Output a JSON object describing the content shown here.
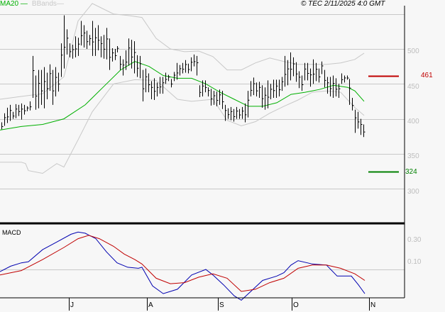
{
  "header": {
    "legend_ma": "MA20",
    "legend_bb": "BBands",
    "copyright": "© TEC 2/11/2025 4:0 GMT"
  },
  "colors": {
    "background": "#f7f7f7",
    "grid": "#c8c8c8",
    "bars": "#000000",
    "ma20": "#00b000",
    "bbands": "#c8c8c8",
    "resistance": "#c00000",
    "support": "#008000",
    "macd": "#0000b0",
    "signal": "#c00000"
  },
  "levels": {
    "resistance": {
      "label": "461",
      "value": 461
    },
    "support": {
      "label": "324",
      "value": 324
    }
  },
  "macd_panel": {
    "title": "MACD"
  },
  "chart_data": [
    {
      "type": "bar",
      "subtype": "ohlc",
      "title": "",
      "ylabel": "Price",
      "ylim": [
        270,
        555
      ],
      "yticks": [
        300,
        350,
        400,
        450,
        500
      ],
      "ytick_labels": [
        "300",
        "350",
        "400",
        "450",
        "500"
      ],
      "grid": true,
      "xticks": [
        "J",
        "A",
        "S",
        "O",
        "N"
      ],
      "legend": [
        "MA20",
        "BBands"
      ],
      "annotations": [
        {
          "text": "461",
          "value": 461,
          "color": "#c00000",
          "kind": "resistance"
        },
        {
          "text": "324",
          "value": 324,
          "color": "#008000",
          "kind": "support"
        },
        {
          "text": "© TEC 2/11/2025 4:0 GMT"
        }
      ],
      "bars_hl": [
        [
          395,
          385
        ],
        [
          408,
          390
        ],
        [
          416,
          394
        ],
        [
          420,
          397
        ],
        [
          410,
          400
        ],
        [
          421,
          401
        ],
        [
          420,
          404
        ],
        [
          422,
          399
        ],
        [
          420,
          406
        ],
        [
          418,
          411
        ],
        [
          425,
          412
        ],
        [
          490,
          430
        ],
        [
          462,
          413
        ],
        [
          470,
          415
        ],
        [
          470,
          420
        ],
        [
          474,
          415
        ],
        [
          466,
          428
        ],
        [
          478,
          440
        ],
        [
          470,
          420
        ],
        [
          474,
          432
        ],
        [
          466,
          439
        ],
        [
          508,
          460
        ],
        [
          548,
          472
        ],
        [
          528,
          492
        ],
        [
          508,
          488
        ],
        [
          506,
          486
        ],
        [
          518,
          488
        ],
        [
          516,
          490
        ],
        [
          540,
          505
        ],
        [
          534,
          502
        ],
        [
          526,
          500
        ],
        [
          520,
          505
        ],
        [
          540,
          490
        ],
        [
          530,
          490
        ],
        [
          534,
          498
        ],
        [
          518,
          488
        ],
        [
          520,
          486
        ],
        [
          530,
          485
        ],
        [
          515,
          470
        ],
        [
          501,
          482
        ],
        [
          500,
          484
        ],
        [
          504,
          495
        ],
        [
          490,
          470
        ],
        [
          485,
          462
        ],
        [
          498,
          470
        ],
        [
          515,
          476
        ],
        [
          513,
          472
        ],
        [
          511,
          465
        ],
        [
          491,
          460
        ],
        [
          490,
          458
        ],
        [
          470,
          425
        ],
        [
          472,
          438
        ],
        [
          465,
          438
        ],
        [
          454,
          428
        ],
        [
          458,
          427
        ],
        [
          452,
          432
        ],
        [
          460,
          436
        ],
        [
          460,
          436
        ],
        [
          466,
          450
        ],
        [
          463,
          454
        ],
        [
          457,
          445
        ],
        [
          467,
          454
        ],
        [
          480,
          456
        ],
        [
          477,
          462
        ],
        [
          480,
          465
        ],
        [
          484,
          466
        ],
        [
          479,
          465
        ],
        [
          488,
          468
        ],
        [
          492,
          475
        ],
        [
          490,
          462
        ],
        [
          448,
          431
        ],
        [
          455,
          432
        ],
        [
          455,
          438
        ],
        [
          445,
          432
        ],
        [
          443,
          419
        ],
        [
          440,
          420
        ],
        [
          439,
          418
        ],
        [
          442,
          420
        ],
        [
          440,
          414
        ],
        [
          420,
          397
        ],
        [
          415,
          400
        ],
        [
          417,
          398
        ],
        [
          414,
          396
        ],
        [
          417,
          400
        ],
        [
          414,
          400
        ],
        [
          417,
          400
        ],
        [
          422,
          395
        ],
        [
          440,
          402
        ],
        [
          454,
          432
        ],
        [
          459,
          434
        ],
        [
          452,
          432
        ],
        [
          453,
          430
        ],
        [
          448,
          416
        ],
        [
          445,
          413
        ],
        [
          455,
          415
        ],
        [
          450,
          428
        ],
        [
          456,
          430
        ],
        [
          456,
          430
        ],
        [
          456,
          432
        ],
        [
          460,
          440
        ],
        [
          490,
          446
        ],
        [
          484,
          448
        ],
        [
          495,
          455
        ],
        [
          488,
          461
        ],
        [
          481,
          453
        ],
        [
          468,
          444
        ],
        [
          462,
          440
        ],
        [
          480,
          455
        ],
        [
          480,
          455
        ],
        [
          472,
          446
        ],
        [
          485,
          450
        ],
        [
          480,
          454
        ],
        [
          472,
          452
        ],
        [
          482,
          464
        ],
        [
          470,
          445
        ],
        [
          460,
          436
        ],
        [
          460,
          432
        ],
        [
          462,
          430
        ],
        [
          458,
          432
        ],
        [
          450,
          430
        ],
        [
          465,
          450
        ],
        [
          462,
          452
        ],
        [
          462,
          456
        ],
        [
          457,
          420
        ],
        [
          430,
          412
        ],
        [
          413,
          380
        ],
        [
          410,
          386
        ],
        [
          400,
          377
        ],
        [
          392,
          374
        ]
      ],
      "ma20": [
        [
          0,
          384
        ],
        [
          30,
          389
        ],
        [
          60,
          392
        ],
        [
          90,
          400
        ],
        [
          120,
          420
        ],
        [
          150,
          450
        ],
        [
          170,
          470
        ],
        [
          190,
          482
        ],
        [
          210,
          475
        ],
        [
          230,
          462
        ],
        [
          250,
          458
        ],
        [
          270,
          458
        ],
        [
          290,
          450
        ],
        [
          310,
          438
        ],
        [
          330,
          428
        ],
        [
          350,
          418
        ],
        [
          370,
          418
        ],
        [
          390,
          423
        ],
        [
          410,
          435
        ],
        [
          430,
          438
        ],
        [
          450,
          442
        ],
        [
          470,
          448
        ],
        [
          490,
          445
        ],
        [
          500,
          440
        ],
        [
          513,
          425
        ]
      ],
      "bb_upper": [
        [
          0,
          428
        ],
        [
          30,
          432
        ],
        [
          60,
          436
        ],
        [
          90,
          460
        ],
        [
          110,
          540
        ],
        [
          130,
          565
        ],
        [
          160,
          550
        ],
        [
          180,
          548
        ],
        [
          200,
          545
        ],
        [
          220,
          515
        ],
        [
          240,
          500
        ],
        [
          260,
          496
        ],
        [
          280,
          497
        ],
        [
          300,
          489
        ],
        [
          320,
          470
        ],
        [
          340,
          470
        ],
        [
          360,
          480
        ],
        [
          380,
          487
        ],
        [
          400,
          482
        ],
        [
          420,
          478
        ],
        [
          440,
          478
        ],
        [
          460,
          478
        ],
        [
          480,
          480
        ],
        [
          500,
          485
        ],
        [
          513,
          494
        ]
      ],
      "bb_upper_note": "upper band exceeds visible area near early June",
      "bb_lower": [
        [
          0,
          338
        ],
        [
          30,
          338
        ],
        [
          36,
          336
        ],
        [
          40,
          326
        ],
        [
          60,
          322
        ],
        [
          80,
          336
        ],
        [
          90,
          331
        ],
        [
          110,
          370
        ],
        [
          130,
          410
        ],
        [
          160,
          450
        ],
        [
          190,
          456
        ],
        [
          220,
          455
        ],
        [
          250,
          428
        ],
        [
          270,
          425
        ],
        [
          300,
          428
        ],
        [
          320,
          398
        ],
        [
          340,
          390
        ],
        [
          360,
          396
        ],
        [
          380,
          408
        ],
        [
          400,
          418
        ],
        [
          420,
          427
        ],
        [
          440,
          438
        ],
        [
          460,
          440
        ],
        [
          480,
          438
        ],
        [
          500,
          416
        ],
        [
          513,
          405
        ]
      ]
    },
    {
      "type": "line",
      "title": "MACD",
      "ylabel": "",
      "yticks": [
        0.3,
        0.1
      ],
      "ytick_labels": [
        "0.30",
        "0.10"
      ],
      "zero_line": 0,
      "xticks": [
        "J",
        "A",
        "S",
        "O",
        "N"
      ],
      "series": [
        {
          "name": "MACD",
          "color": "#0000b0",
          "points": [
            [
              0,
              -0.02
            ],
            [
              15,
              0.03
            ],
            [
              30,
              0.06
            ],
            [
              40,
              0.07
            ],
            [
              60,
              0.18
            ],
            [
              80,
              0.25
            ],
            [
              100,
              0.32
            ],
            [
              110,
              0.34
            ],
            [
              120,
              0.33
            ],
            [
              135,
              0.28
            ],
            [
              150,
              0.16
            ],
            [
              165,
              0.06
            ],
            [
              180,
              0.02
            ],
            [
              195,
              0.01
            ],
            [
              200,
              0.02
            ],
            [
              215,
              -0.15
            ],
            [
              230,
              -0.22
            ],
            [
              250,
              -0.18
            ],
            [
              270,
              -0.05
            ],
            [
              290,
              0.0
            ],
            [
              300,
              -0.05
            ],
            [
              315,
              -0.14
            ],
            [
              330,
              -0.24
            ],
            [
              340,
              -0.28
            ],
            [
              350,
              -0.22
            ],
            [
              370,
              -0.1
            ],
            [
              390,
              -0.06
            ],
            [
              400,
              -0.03
            ],
            [
              410,
              0.04
            ],
            [
              420,
              0.08
            ],
            [
              440,
              0.05
            ],
            [
              460,
              0.04
            ],
            [
              475,
              -0.06
            ],
            [
              495,
              -0.06
            ],
            [
              505,
              -0.14
            ],
            [
              514,
              -0.22
            ]
          ]
        },
        {
          "name": "Signal",
          "color": "#c00000",
          "points": [
            [
              0,
              -0.05
            ],
            [
              30,
              -0.01
            ],
            [
              60,
              0.09
            ],
            [
              90,
              0.2
            ],
            [
              110,
              0.28
            ],
            [
              125,
              0.31
            ],
            [
              140,
              0.28
            ],
            [
              160,
              0.21
            ],
            [
              175,
              0.14
            ],
            [
              190,
              0.09
            ],
            [
              200,
              0.05
            ],
            [
              220,
              -0.08
            ],
            [
              240,
              -0.13
            ],
            [
              260,
              -0.12
            ],
            [
              280,
              -0.07
            ],
            [
              300,
              -0.04
            ],
            [
              320,
              -0.08
            ],
            [
              340,
              -0.2
            ],
            [
              360,
              -0.18
            ],
            [
              380,
              -0.12
            ],
            [
              400,
              -0.08
            ],
            [
              420,
              0.01
            ],
            [
              440,
              0.04
            ],
            [
              460,
              0.04
            ],
            [
              480,
              0.01
            ],
            [
              500,
              -0.04
            ],
            [
              514,
              -0.1
            ]
          ]
        }
      ]
    }
  ]
}
